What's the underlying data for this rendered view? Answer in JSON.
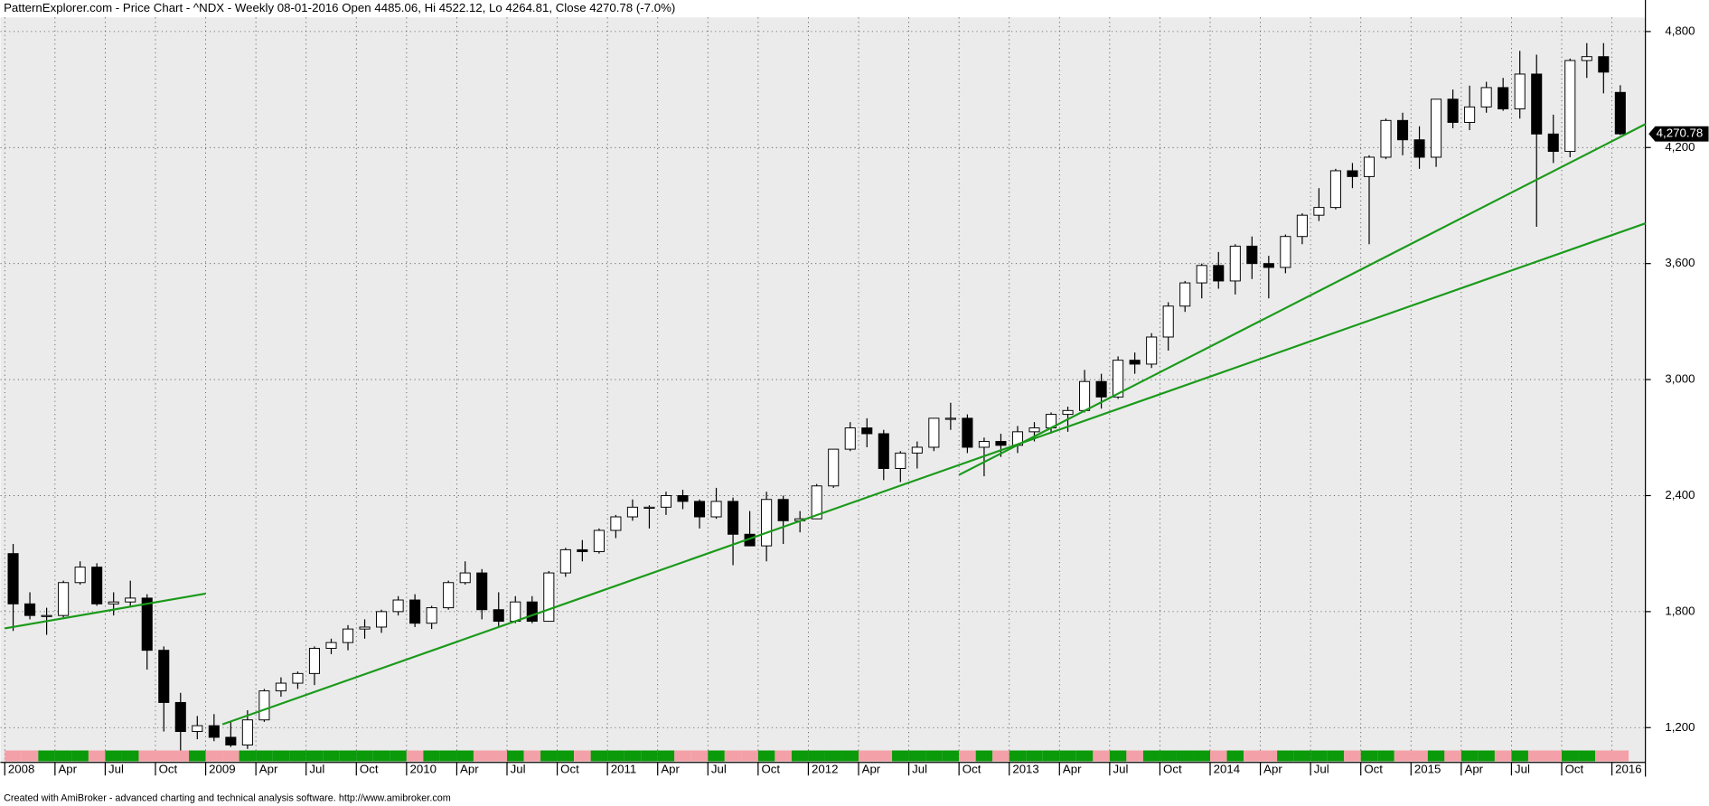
{
  "chart_data": {
    "type": "candlestick",
    "title": "PatternExplorer.com - Price Chart - ^NDX - Weekly 08-01-2016 Open 4485.06, Hi 4522.12, Lo 4264.81, Close 4270.78 (-7.0%)",
    "footer": "Created with AmiBroker - advanced charting and technical analysis software. http://www.amibroker.com",
    "x": [
      "2008-01",
      "2008-02",
      "2008-03",
      "2008-04",
      "2008-05",
      "2008-06",
      "2008-07",
      "2008-08",
      "2008-09",
      "2008-10",
      "2008-11",
      "2008-12",
      "2009-01",
      "2009-02",
      "2009-03",
      "2009-04",
      "2009-05",
      "2009-06",
      "2009-07",
      "2009-08",
      "2009-09",
      "2009-10",
      "2009-11",
      "2009-12",
      "2010-01",
      "2010-02",
      "2010-03",
      "2010-04",
      "2010-05",
      "2010-06",
      "2010-07",
      "2010-08",
      "2010-09",
      "2010-10",
      "2010-11",
      "2010-12",
      "2011-01",
      "2011-02",
      "2011-03",
      "2011-04",
      "2011-05",
      "2011-06",
      "2011-07",
      "2011-08",
      "2011-09",
      "2011-10",
      "2011-11",
      "2011-12",
      "2012-01",
      "2012-02",
      "2012-03",
      "2012-04",
      "2012-05",
      "2012-06",
      "2012-07",
      "2012-08",
      "2012-09",
      "2012-10",
      "2012-11",
      "2012-12",
      "2013-01",
      "2013-02",
      "2013-03",
      "2013-04",
      "2013-05",
      "2013-06",
      "2013-07",
      "2013-08",
      "2013-09",
      "2013-10",
      "2013-11",
      "2013-12",
      "2014-01",
      "2014-02",
      "2014-03",
      "2014-04",
      "2014-05",
      "2014-06",
      "2014-07",
      "2014-08",
      "2014-09",
      "2014-10",
      "2014-11",
      "2014-12",
      "2015-01",
      "2015-02",
      "2015-03",
      "2015-04",
      "2015-05",
      "2015-06",
      "2015-07",
      "2015-08",
      "2015-09",
      "2015-10",
      "2015-11",
      "2015-12",
      "2016-01"
    ],
    "open": [
      2100,
      1840,
      1780,
      1780,
      1950,
      2030,
      1840,
      1850,
      1870,
      1600,
      1330,
      1180,
      1210,
      1150,
      1110,
      1240,
      1390,
      1430,
      1480,
      1610,
      1640,
      1710,
      1720,
      1800,
      1860,
      1740,
      1820,
      1950,
      2000,
      1810,
      1750,
      1850,
      1750,
      2000,
      2120,
      2110,
      2220,
      2290,
      2340,
      2340,
      2400,
      2370,
      2290,
      2370,
      2200,
      2140,
      2380,
      2270,
      2280,
      2450,
      2640,
      2750,
      2720,
      2540,
      2620,
      2650,
      2800,
      2800,
      2650,
      2680,
      2660,
      2730,
      2750,
      2820,
      2840,
      2990,
      2910,
      3100,
      3080,
      3220,
      3380,
      3500,
      3590,
      3510,
      3690,
      3600,
      3580,
      3740,
      3850,
      3890,
      4080,
      4050,
      4150,
      4340,
      4240,
      4150,
      4450,
      4330,
      4410,
      4510,
      4400,
      4580,
      4270,
      4180,
      4650,
      4670,
      4485.06
    ],
    "high": [
      2150,
      1900,
      1820,
      1960,
      2060,
      2050,
      1900,
      1960,
      1890,
      1620,
      1380,
      1260,
      1270,
      1230,
      1290,
      1400,
      1460,
      1490,
      1620,
      1660,
      1730,
      1760,
      1810,
      1880,
      1890,
      1830,
      1960,
      2060,
      2020,
      1900,
      1880,
      1880,
      2010,
      2130,
      2170,
      2230,
      2300,
      2380,
      2350,
      2420,
      2430,
      2380,
      2440,
      2390,
      2320,
      2420,
      2400,
      2320,
      2460,
      2640,
      2780,
      2800,
      2740,
      2630,
      2680,
      2800,
      2880,
      2820,
      2700,
      2720,
      2760,
      2780,
      2830,
      2860,
      3050,
      3030,
      3120,
      3140,
      3240,
      3400,
      3510,
      3600,
      3660,
      3700,
      3740,
      3640,
      3750,
      3860,
      3990,
      4090,
      4120,
      4160,
      4350,
      4380,
      4310,
      4450,
      4500,
      4520,
      4540,
      4560,
      4700,
      4680,
      4370,
      4660,
      4740,
      4740,
      4522.12
    ],
    "low": [
      1700,
      1760,
      1680,
      1770,
      1940,
      1830,
      1780,
      1830,
      1500,
      1180,
      1060,
      1140,
      1130,
      1100,
      1090,
      1230,
      1360,
      1400,
      1420,
      1580,
      1600,
      1660,
      1690,
      1780,
      1720,
      1710,
      1810,
      1940,
      1760,
      1720,
      1740,
      1740,
      1750,
      1980,
      2060,
      2100,
      2180,
      2270,
      2230,
      2300,
      2330,
      2230,
      2280,
      2040,
      2140,
      2060,
      2150,
      2210,
      2280,
      2440,
      2630,
      2650,
      2480,
      2470,
      2540,
      2630,
      2740,
      2620,
      2500,
      2600,
      2620,
      2680,
      2720,
      2730,
      2830,
      2850,
      2900,
      3030,
      3060,
      3150,
      3350,
      3420,
      3470,
      3440,
      3520,
      3420,
      3550,
      3700,
      3820,
      3880,
      3990,
      3700,
      4140,
      4160,
      4090,
      4100,
      4300,
      4290,
      4380,
      4390,
      4350,
      3790,
      4120,
      4150,
      4560,
      4480,
      4264.81
    ],
    "close": [
      1840,
      1780,
      1780,
      1950,
      2030,
      1840,
      1850,
      1870,
      1600,
      1330,
      1180,
      1210,
      1150,
      1110,
      1240,
      1390,
      1430,
      1480,
      1610,
      1640,
      1710,
      1720,
      1800,
      1860,
      1740,
      1820,
      1950,
      2000,
      1810,
      1750,
      1850,
      1750,
      2000,
      2120,
      2110,
      2220,
      2290,
      2340,
      2340,
      2400,
      2370,
      2290,
      2370,
      2200,
      2140,
      2380,
      2270,
      2280,
      2450,
      2640,
      2750,
      2720,
      2540,
      2620,
      2650,
      2800,
      2800,
      2650,
      2680,
      2660,
      2730,
      2750,
      2820,
      2840,
      2990,
      2910,
      3100,
      3080,
      3220,
      3380,
      3500,
      3590,
      3510,
      3690,
      3600,
      3580,
      3740,
      3850,
      3890,
      4080,
      4050,
      4150,
      4340,
      4240,
      4150,
      4450,
      4330,
      4410,
      4510,
      4400,
      4580,
      4270,
      4180,
      4650,
      4670,
      4590,
      4270.78
    ],
    "up_color": "#ffffff",
    "down_color": "#000000",
    "strip_up_color": "#0a9a0a",
    "strip_down_color": "#f4a0a8",
    "xlim": [
      "2008-01",
      "2016-03"
    ],
    "xticks": [
      {
        "value": "2008-01",
        "label": "2008"
      },
      {
        "value": "2008-04",
        "label": "Apr"
      },
      {
        "value": "2008-07",
        "label": "Jul"
      },
      {
        "value": "2008-10",
        "label": "Oct"
      },
      {
        "value": "2009-01",
        "label": "2009"
      },
      {
        "value": "2009-04",
        "label": "Apr"
      },
      {
        "value": "2009-07",
        "label": "Jul"
      },
      {
        "value": "2009-10",
        "label": "Oct"
      },
      {
        "value": "2010-01",
        "label": "2010"
      },
      {
        "value": "2010-04",
        "label": "Apr"
      },
      {
        "value": "2010-07",
        "label": "Jul"
      },
      {
        "value": "2010-10",
        "label": "Oct"
      },
      {
        "value": "2011-01",
        "label": "2011"
      },
      {
        "value": "2011-04",
        "label": "Apr"
      },
      {
        "value": "2011-07",
        "label": "Jul"
      },
      {
        "value": "2011-10",
        "label": "Oct"
      },
      {
        "value": "2012-01",
        "label": "2012"
      },
      {
        "value": "2012-04",
        "label": "Apr"
      },
      {
        "value": "2012-07",
        "label": "Jul"
      },
      {
        "value": "2012-10",
        "label": "Oct"
      },
      {
        "value": "2013-01",
        "label": "2013"
      },
      {
        "value": "2013-04",
        "label": "Apr"
      },
      {
        "value": "2013-07",
        "label": "Jul"
      },
      {
        "value": "2013-10",
        "label": "Oct"
      },
      {
        "value": "2014-01",
        "label": "2014"
      },
      {
        "value": "2014-04",
        "label": "Apr"
      },
      {
        "value": "2014-07",
        "label": "Jul"
      },
      {
        "value": "2014-10",
        "label": "Oct"
      },
      {
        "value": "2015-01",
        "label": "2015"
      },
      {
        "value": "2015-04",
        "label": "Apr"
      },
      {
        "value": "2015-07",
        "label": "Jul"
      },
      {
        "value": "2015-10",
        "label": "Oct"
      },
      {
        "value": "2016-01",
        "label": "2016"
      }
    ],
    "ylim": [
      1020,
      4963
    ],
    "yticks": [
      {
        "value": 1200,
        "label": "1,200"
      },
      {
        "value": 1800,
        "label": "1,800"
      },
      {
        "value": 2400,
        "label": "2,400"
      },
      {
        "value": 3000,
        "label": "3,000"
      },
      {
        "value": 3600,
        "label": "3,600"
      },
      {
        "value": 4200,
        "label": "4,200"
      },
      {
        "value": 4800,
        "label": "4,800"
      }
    ],
    "grid": true,
    "last_price": {
      "value": 4270.78,
      "label": "4,270.78"
    },
    "trendline_color": "#1a9a1a",
    "trendlines": [
      {
        "from": [
          "2008-01",
          1713
        ],
        "to": [
          "2009-01",
          1893
        ]
      },
      {
        "from": [
          "2009-02",
          1217
        ],
        "to": [
          "2016-03",
          3808
        ]
      },
      {
        "from": [
          "2012-10",
          2507
        ],
        "to": [
          "2016-03",
          4321
        ]
      }
    ]
  }
}
